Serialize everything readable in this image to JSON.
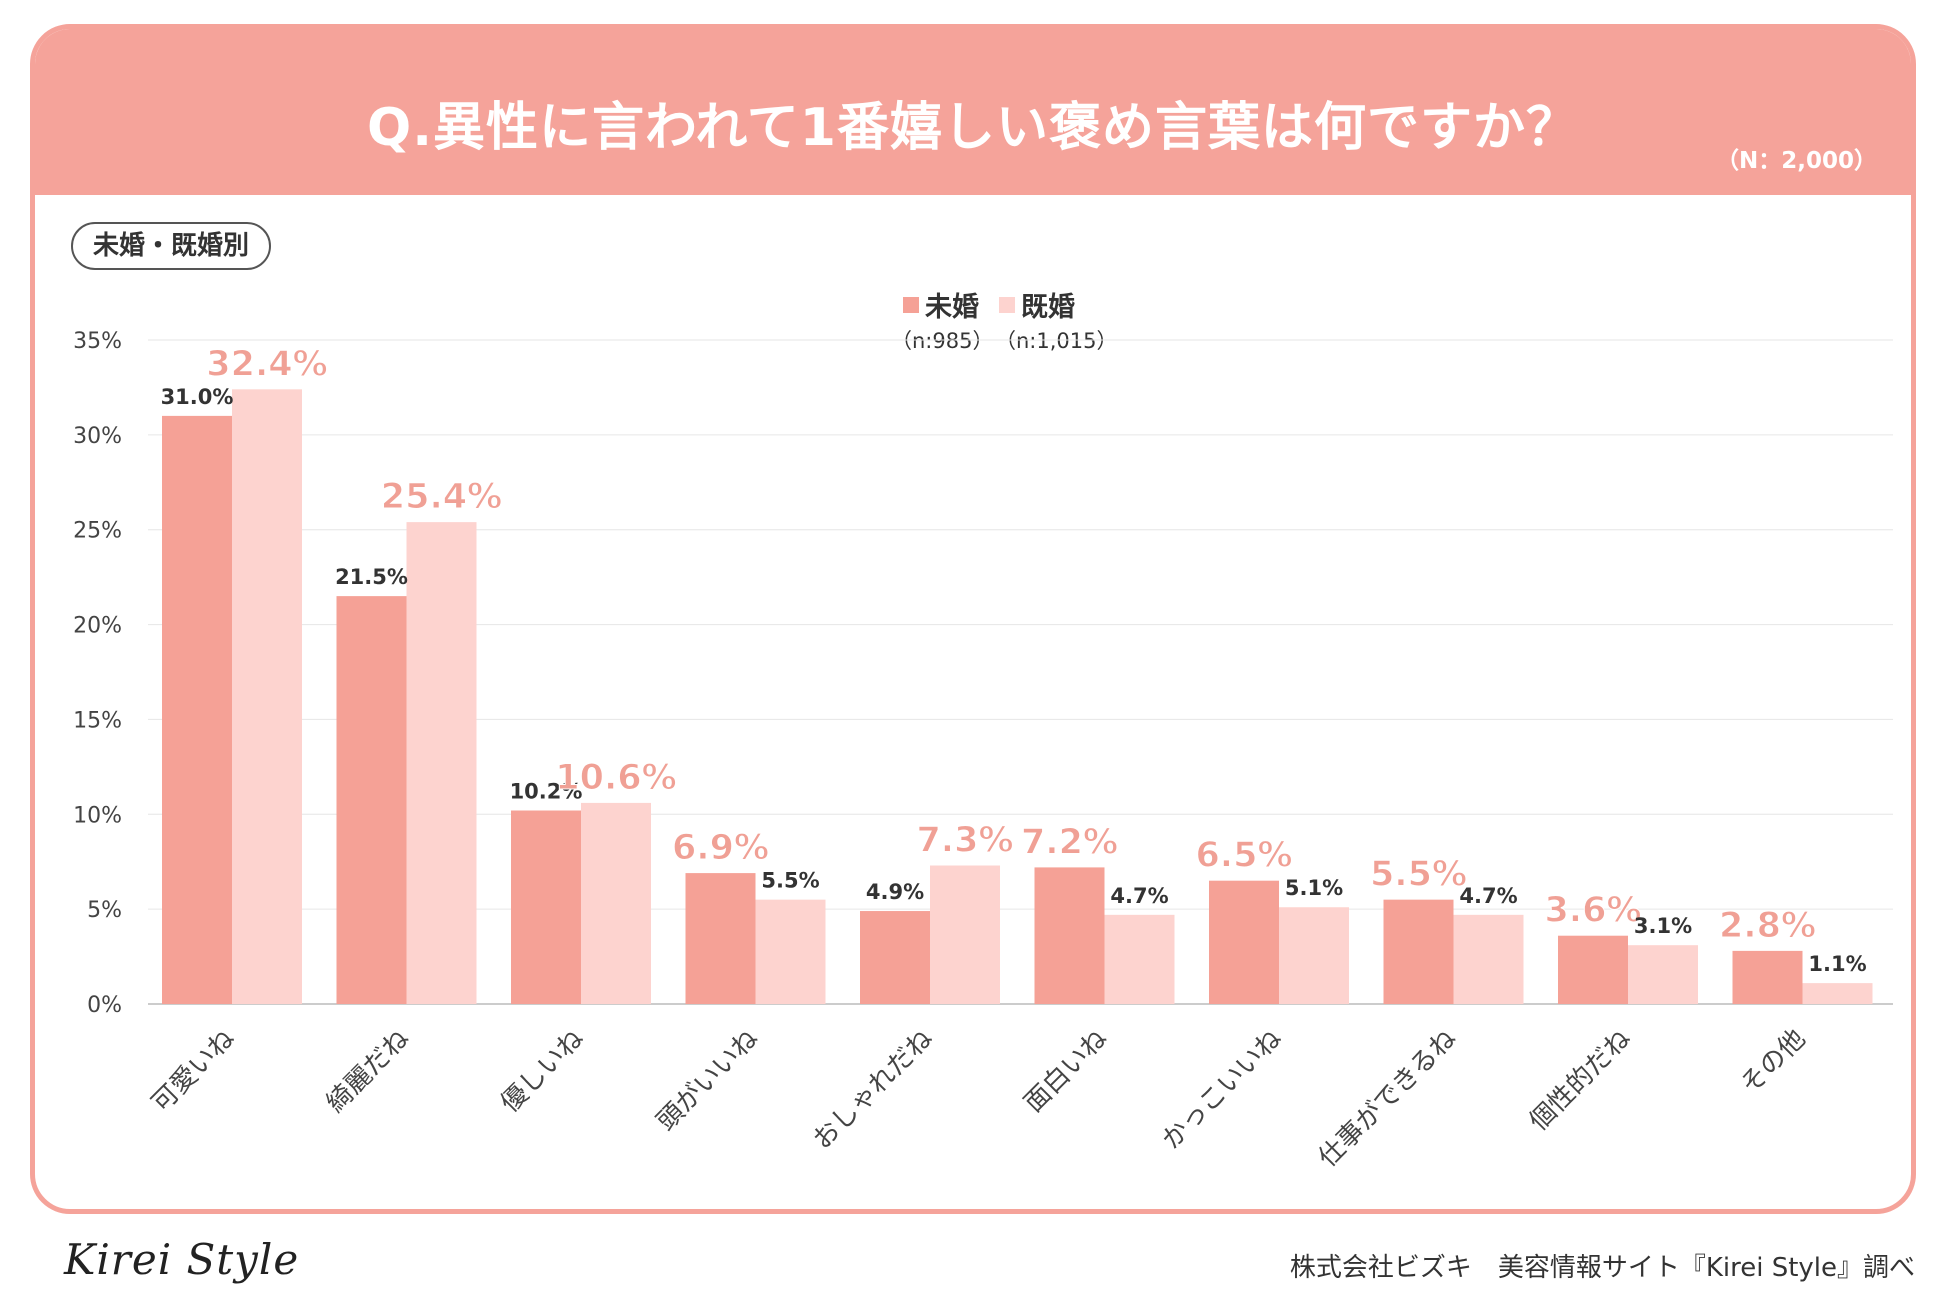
{
  "header": {
    "title": "Q.異性に言われて1番嬉しい褒め言葉は何ですか？",
    "n_total": "（N：2,000）"
  },
  "subtitle": "未婚・既婚別",
  "legend": {
    "series": [
      {
        "name": "未婚",
        "n": "（n:985）",
        "color": "#f5a196"
      },
      {
        "name": "既婚",
        "n": "（n:1,015）",
        "color": "#fdd3cf"
      }
    ]
  },
  "colors": {
    "header_bg": "#f5a39a",
    "bar_unmarried": "#f5a196",
    "bar_married": "#fdd3cf",
    "highlight_label": "#f0a095",
    "normal_label": "#333333",
    "grid": "#e6e6e6",
    "axis_text": "#444444"
  },
  "chart_data": {
    "type": "bar",
    "title": "Q.異性に言われて1番嬉しい褒め言葉は何ですか？",
    "categories": [
      "可愛いね",
      "綺麗だね",
      "優しいね",
      "頭がいいね",
      "おしゃれだね",
      "面白いね",
      "かっこいいね",
      "仕事ができるね",
      "個性的だね",
      "その他"
    ],
    "series": [
      {
        "name": "未婚",
        "values": [
          31.0,
          21.5,
          10.2,
          6.9,
          4.9,
          7.2,
          6.5,
          5.5,
          3.6,
          2.8
        ]
      },
      {
        "name": "既婚",
        "values": [
          32.4,
          25.4,
          10.6,
          5.5,
          7.3,
          4.7,
          5.1,
          4.7,
          3.1,
          1.1
        ]
      }
    ],
    "value_labels": [
      [
        "31.0%",
        "21.5%",
        "10.2%",
        "6.9%",
        "4.9%",
        "7.2%",
        "6.5%",
        "5.5%",
        "3.6%",
        "2.8%"
      ],
      [
        "32.4%",
        "25.4%",
        "10.6%",
        "5.5%",
        "7.3%",
        "4.7%",
        "5.1%",
        "4.7%",
        "3.1%",
        "1.1%"
      ]
    ],
    "highlight_series_index": [
      1,
      1,
      1,
      0,
      1,
      0,
      0,
      0,
      0,
      0
    ],
    "ylim": [
      0,
      35
    ],
    "yticks": [
      0,
      5,
      10,
      15,
      20,
      25,
      30,
      35
    ],
    "ytick_labels": [
      "0%",
      "5%",
      "10%",
      "15%",
      "20%",
      "25%",
      "30%",
      "35%"
    ],
    "xlabel": "",
    "ylabel": "",
    "grid": true,
    "legend_position": "top-center"
  },
  "footer": {
    "logo": "Kirei Style",
    "credit": "株式会社ビズキ　美容情報サイト『Kirei Style』調べ"
  }
}
